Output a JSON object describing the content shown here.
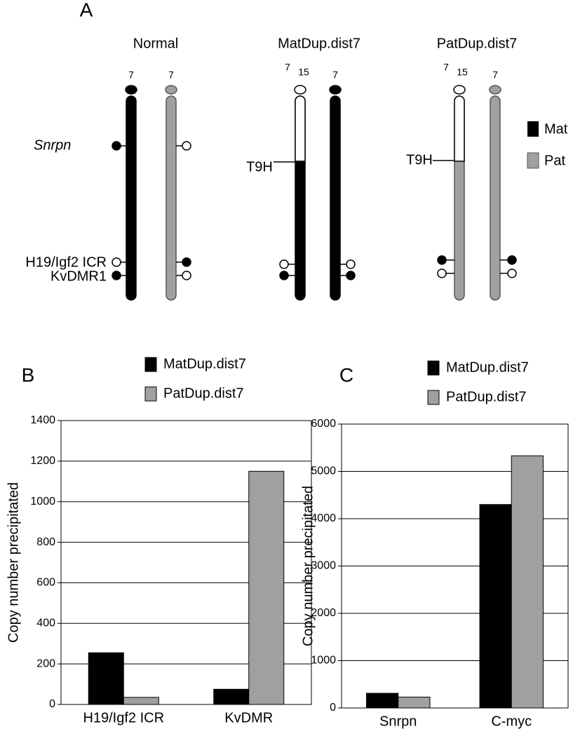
{
  "panel_a": {
    "label": "A",
    "groups": [
      "Normal",
      "MatDup.dist7",
      "PatDup.dist7"
    ],
    "chromosome_labels": [
      "7",
      "7",
      "7",
      "15",
      "7",
      "7",
      "15",
      "7"
    ],
    "loci": [
      "Snrpn",
      "H19/Igf2 ICR",
      "KvDMR1"
    ],
    "translocation": "T9H",
    "legend": [
      "Mat",
      "Pat"
    ]
  },
  "chart_data": [
    {
      "type": "bar",
      "label": "B",
      "ylabel": "Copy number precipitated",
      "categories": [
        "H19/Igf2 ICR",
        "KvDMR"
      ],
      "series": [
        {
          "name": "MatDup.dist7",
          "color": "#000000",
          "values": [
            255,
            75
          ]
        },
        {
          "name": "PatDup.dist7",
          "color": "#a0a0a0",
          "values": [
            35,
            1150
          ]
        }
      ],
      "ylim": [
        0,
        1400
      ],
      "yticks": [
        0,
        200,
        400,
        600,
        800,
        1000,
        1200,
        1400
      ],
      "grid": true
    },
    {
      "type": "bar",
      "label": "C",
      "ylabel": "Copy number precipitated",
      "categories": [
        "Snrpn",
        "C-myc"
      ],
      "series": [
        {
          "name": "MatDup.dist7",
          "color": "#000000",
          "values": [
            310,
            4300
          ]
        },
        {
          "name": "PatDup.dist7",
          "color": "#a0a0a0",
          "values": [
            230,
            5330
          ]
        }
      ],
      "ylim": [
        0,
        6000
      ],
      "yticks": [
        0,
        1000,
        2000,
        3000,
        4000,
        5000,
        6000
      ],
      "grid": true
    }
  ]
}
